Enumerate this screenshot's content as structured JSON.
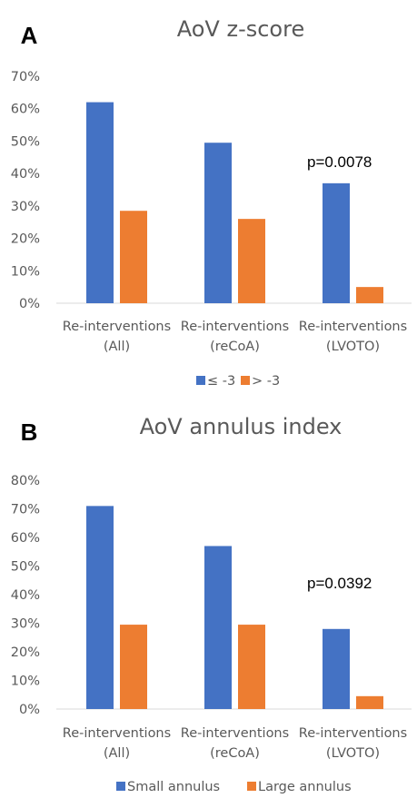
{
  "chart_data": [
    {
      "type": "bar",
      "panel_label": "A",
      "title": "AoV z-score",
      "categories": [
        [
          "Re-interventions",
          "(All)"
        ],
        [
          "Re-interventions",
          "(reCoA)"
        ],
        [
          "Re-interventions",
          "(LVOTO)"
        ]
      ],
      "series": [
        {
          "name": "≤ -3",
          "values": [
            62,
            49.5,
            37
          ],
          "color": "#4472c4"
        },
        {
          "name": "> -3",
          "values": [
            28.5,
            26,
            5
          ],
          "color": "#ed7d31"
        }
      ],
      "ylim": [
        0,
        70
      ],
      "yticks": [
        0,
        10,
        20,
        30,
        40,
        50,
        60,
        70
      ],
      "ytick_labels": [
        "0%",
        "10%",
        "20%",
        "30%",
        "40%",
        "50%",
        "60%",
        "70%"
      ],
      "annotation": {
        "text": "p=0.0078",
        "category_index": 2
      },
      "legend_position": "bottom",
      "grid": false
    },
    {
      "type": "bar",
      "panel_label": "B",
      "title": "AoV annulus index",
      "categories": [
        [
          "Re-interventions",
          "(All)"
        ],
        [
          "Re-interventions",
          "(reCoA)"
        ],
        [
          "Re-interventions",
          "(LVOTO)"
        ]
      ],
      "series": [
        {
          "name": "Small annulus",
          "values": [
            71,
            57,
            28
          ],
          "color": "#4472c4"
        },
        {
          "name": "Large annulus",
          "values": [
            29.5,
            29.5,
            4.5
          ],
          "color": "#ed7d31"
        }
      ],
      "ylim": [
        0,
        80
      ],
      "yticks": [
        0,
        10,
        20,
        30,
        40,
        50,
        60,
        70,
        80
      ],
      "ytick_labels": [
        "0%",
        "10%",
        "20%",
        "30%",
        "40%",
        "50%",
        "60%",
        "70%",
        "80%"
      ],
      "annotation": {
        "text": "p=0.0392",
        "category_index": 2
      },
      "legend_position": "bottom",
      "grid": false
    }
  ]
}
